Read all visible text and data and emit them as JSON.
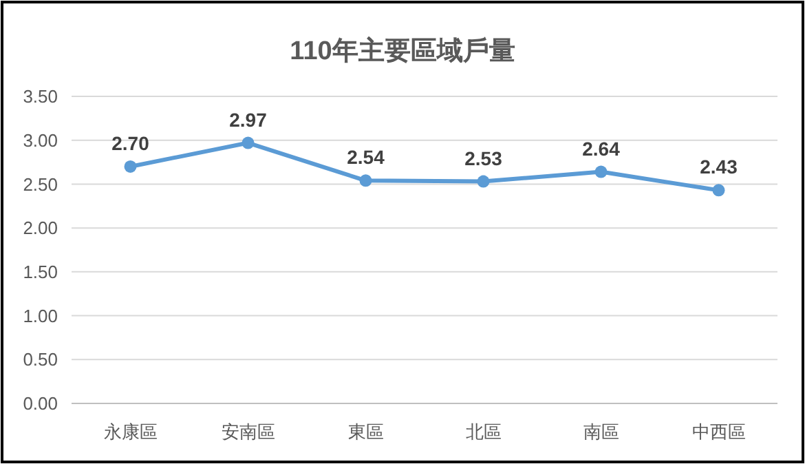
{
  "chart_data": {
    "type": "line",
    "title": "110年主要區域戶量",
    "categories": [
      "永康區",
      "安南區",
      "東區",
      "北區",
      "南區",
      "中西區"
    ],
    "series": [
      {
        "color": "#5b9bd5",
        "values": [
          2.7,
          2.97,
          2.54,
          2.53,
          2.64,
          2.43
        ],
        "value_labels": [
          "2.70",
          "2.97",
          "2.54",
          "2.53",
          "2.64",
          "2.43"
        ]
      }
    ],
    "ylim": [
      0,
      3.5
    ],
    "yticks": [
      {
        "value": 0,
        "label": "0.00"
      },
      {
        "value": 0.5,
        "label": "0.50"
      },
      {
        "value": 1,
        "label": "1.00"
      },
      {
        "value": 1.5,
        "label": "1.50"
      },
      {
        "value": 2,
        "label": "2.00"
      },
      {
        "value": 2.5,
        "label": "2.50"
      },
      {
        "value": 3,
        "label": "3.00"
      },
      {
        "value": 3.5,
        "label": "3.50"
      }
    ],
    "grid": "y",
    "marker": "circle",
    "line_style": "solid"
  }
}
